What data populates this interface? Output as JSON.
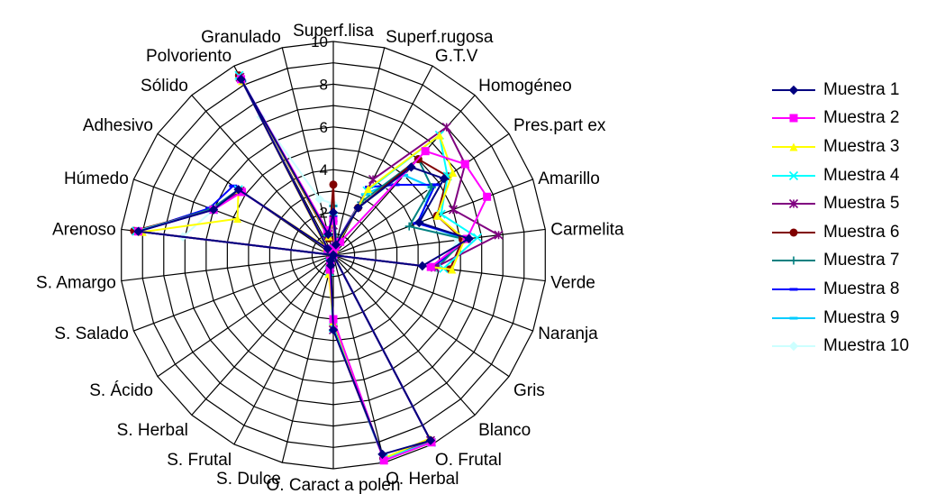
{
  "chart_data": {
    "type": "radar",
    "axes": [
      "Superf.lisa",
      "Superf.rugosa",
      "G.T.V",
      "Homogéneo",
      "Pres.part ex",
      "Amarillo",
      "Carmelita",
      "Verde",
      "Naranja",
      "Gris",
      "Blanco",
      "O. Frutal",
      "O. Herbal",
      "O. Caract a polen",
      "S. Dulce",
      "S. Frutal",
      "S. Herbal",
      "S. Ácido",
      "S. Salado",
      "S. Amargo",
      "Arenoso",
      "Húmedo",
      "Adhesivo",
      "Sólido",
      "Polvoriento",
      "Granulado"
    ],
    "ticks": [
      "2",
      "4",
      "6",
      "8",
      "10"
    ],
    "rlim": [
      0,
      10
    ],
    "grid": true,
    "legend_position": "right",
    "series": [
      {
        "name": "Muestra 1",
        "color": "#000080",
        "marker": "diamond",
        "values": [
          2.0,
          0.5,
          2.5,
          5.5,
          6.3,
          4.3,
          6.4,
          4.2,
          0,
          0,
          0,
          9.8,
          9.6,
          3.5,
          0.5,
          0.3,
          0,
          0,
          0,
          0,
          9.2,
          6.0,
          5.4,
          0.4,
          9.3,
          1.0
        ]
      },
      {
        "name": "Muestra 2",
        "color": "#ff00ff",
        "marker": "square",
        "values": [
          1.6,
          0.4,
          0.7,
          6.5,
          7.5,
          7.7,
          6.3,
          4.6,
          0,
          0,
          0,
          9.9,
          9.9,
          3.0,
          0.7,
          0.3,
          0,
          0,
          0,
          0,
          9.2,
          6.0,
          5.2,
          0.4,
          9.3,
          1.2
        ]
      },
      {
        "name": "Muestra 3",
        "color": "#ffff00",
        "marker": "triangle",
        "values": [
          1.7,
          0.3,
          3.5,
          7.5,
          6.8,
          5.2,
          6.2,
          5.6,
          0,
          0,
          0,
          9.7,
          9.8,
          3.1,
          0.9,
          0.4,
          0,
          0,
          0,
          0,
          9.0,
          4.8,
          5.4,
          0.5,
          9.2,
          0.9
        ]
      },
      {
        "name": "Muestra 4",
        "color": "#00ffff",
        "marker": "x",
        "values": [
          1.8,
          0.4,
          3.4,
          7.5,
          6.5,
          5.4,
          6.8,
          5.2,
          0,
          0,
          0,
          9.9,
          9.8,
          3.4,
          0.8,
          0.4,
          0,
          0,
          0,
          0,
          9.3,
          6.0,
          5.4,
          0.4,
          9.5,
          1.1
        ]
      },
      {
        "name": "Muestra 5",
        "color": "#800080",
        "marker": "star",
        "values": [
          1.4,
          0.5,
          4.0,
          8.0,
          7.5,
          6.0,
          7.8,
          4.8,
          0,
          0,
          0,
          9.8,
          9.8,
          3.5,
          0.6,
          0.3,
          0,
          0,
          0,
          0,
          9.3,
          6.0,
          5.3,
          0.4,
          9.4,
          1.0
        ]
      },
      {
        "name": "Muestra 6",
        "color": "#800000",
        "marker": "circle",
        "values": [
          3.3,
          0.4,
          2.5,
          6.0,
          6.5,
          5.2,
          6.1,
          5.5,
          0,
          0,
          0,
          9.8,
          9.8,
          3.3,
          0.5,
          0.3,
          0,
          0,
          0,
          0,
          9.4,
          6.0,
          5.3,
          0.4,
          9.5,
          0.8
        ]
      },
      {
        "name": "Muestra 7",
        "color": "#008080",
        "marker": "plus",
        "values": [
          2.3,
          0.6,
          2.8,
          6.0,
          5.6,
          3.8,
          6.2,
          4.9,
          0,
          0,
          0,
          9.8,
          9.8,
          3.1,
          0.6,
          0.3,
          0,
          0,
          0,
          0,
          9.2,
          6.1,
          5.4,
          0.4,
          9.2,
          0.9
        ]
      },
      {
        "name": "Muestra 8",
        "color": "#0000ff",
        "marker": "dash",
        "values": [
          1.8,
          0.6,
          3.6,
          4.4,
          5.8,
          4.2,
          6.4,
          4.7,
          0,
          0,
          0,
          9.8,
          9.8,
          3.3,
          0.6,
          0.3,
          0,
          0,
          0,
          0,
          9.2,
          6.2,
          5.7,
          0.4,
          9.2,
          0.9
        ]
      },
      {
        "name": "Muestra 9",
        "color": "#00ccff",
        "marker": "dash",
        "values": [
          2.3,
          0.4,
          3.2,
          5.0,
          5.6,
          4.3,
          6.2,
          4.7,
          0,
          0,
          0,
          9.8,
          9.8,
          3.3,
          0.6,
          0.3,
          0,
          0,
          0,
          0,
          9.2,
          6.0,
          5.3,
          0.4,
          9.2,
          1.0
        ]
      },
      {
        "name": "Muestra 10",
        "color": "#ccffff",
        "marker": "diamond",
        "values": [
          2.4,
          0.4,
          2.6,
          5.0,
          5.5,
          4.3,
          5.9,
          4.9,
          0,
          0,
          0,
          9.8,
          9.8,
          3.1,
          0.6,
          0.3,
          0,
          0,
          0,
          0,
          7.1,
          6.0,
          5.4,
          0.4,
          7.3,
          2.7
        ]
      }
    ]
  }
}
